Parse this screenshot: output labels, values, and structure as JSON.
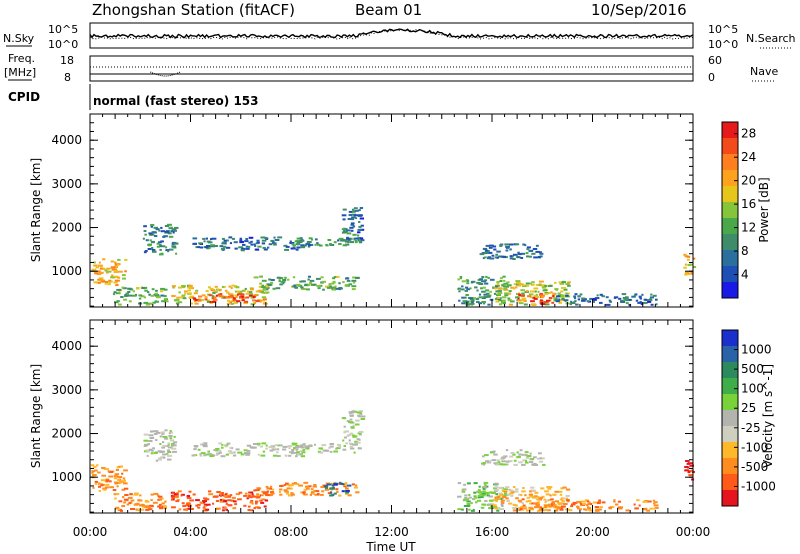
{
  "header": {
    "station": "Zhongshan Station (fitACF)",
    "beam": "Beam 01",
    "date": "10/Sep/2016"
  },
  "top_panels": {
    "nsky_label": "N.Sky",
    "nsearch_label": "N.Search",
    "nsky_ticks": [
      "10^5",
      "10^0"
    ],
    "nsearch_ticks": [
      "10^5",
      "10^0"
    ],
    "freq_label_1": "Freq.",
    "freq_label_2": "[MHz]",
    "freq_ticks": [
      "18",
      "8"
    ],
    "nave_label": "Nave",
    "nave_ticks": [
      "60",
      "0"
    ],
    "cpid_label": "CPID",
    "cpid_text": "normal (fast stereo) 153"
  },
  "colors": {
    "power_scale": [
      "#1a1ae6",
      "#1e4fb4",
      "#2a6f9e",
      "#3f8c6a",
      "#4aa84a",
      "#86c43a",
      "#e6c61a",
      "#ffa21e",
      "#ff7f1e",
      "#f24a1a",
      "#e61a1a"
    ],
    "velocity_scale": [
      "#e6141e",
      "#ff5a1a",
      "#ff8c1e",
      "#ffb82a",
      "#cfcfbf",
      "#b4b4ae",
      "#7ad23a",
      "#3fae4a",
      "#2c8a5c",
      "#2a62a8",
      "#1a2fcc"
    ],
    "ground_scatter": "#c8c8c0"
  },
  "chart_data": [
    {
      "type": "heatmap",
      "name": "power",
      "ylabel": "Slant Range [km]",
      "xlabel": "",
      "colorbar_label": "Power [dB]",
      "colorbar_ticks": [
        "4",
        "8",
        "12",
        "16",
        "20",
        "24",
        "28"
      ],
      "colorbar_range": [
        0,
        30
      ],
      "x_ticks": [
        "00:00",
        "04:00",
        "08:00",
        "12:00",
        "16:00",
        "20:00",
        "00:00"
      ],
      "y_ticks": [
        "1000",
        "2000",
        "3000",
        "4000"
      ],
      "xlim": [
        0,
        24
      ],
      "ylim": [
        180,
        4600
      ],
      "regions": [
        {
          "t0": 0.0,
          "t1": 1.4,
          "r0": 700,
          "r1": 1300,
          "v": 20
        },
        {
          "t0": 0.9,
          "t1": 3.0,
          "r0": 250,
          "r1": 650,
          "v": 12
        },
        {
          "t0": 2.1,
          "t1": 3.4,
          "r0": 1400,
          "r1": 2100,
          "v": 8
        },
        {
          "t0": 3.2,
          "t1": 7.0,
          "r0": 260,
          "r1": 700,
          "v": 18
        },
        {
          "t0": 3.8,
          "t1": 6.6,
          "r0": 300,
          "r1": 500,
          "v": 26
        },
        {
          "t0": 4.0,
          "t1": 8.5,
          "r0": 1500,
          "r1": 1800,
          "v": 6
        },
        {
          "t0": 6.5,
          "t1": 10.6,
          "r0": 600,
          "r1": 900,
          "v": 12
        },
        {
          "t0": 8.0,
          "t1": 10.6,
          "r0": 1580,
          "r1": 1800,
          "v": 8
        },
        {
          "t0": 10.0,
          "t1": 10.8,
          "r0": 1650,
          "r1": 2550,
          "v": 6
        },
        {
          "t0": 14.6,
          "t1": 16.5,
          "r0": 250,
          "r1": 900,
          "v": 10
        },
        {
          "t0": 15.5,
          "t1": 18.0,
          "r0": 1300,
          "r1": 1650,
          "v": 6
        },
        {
          "t0": 16.0,
          "t1": 19.0,
          "r0": 250,
          "r1": 800,
          "v": 16
        },
        {
          "t0": 17.0,
          "t1": 18.5,
          "r0": 260,
          "r1": 520,
          "v": 26
        },
        {
          "t0": 18.5,
          "t1": 22.5,
          "r0": 250,
          "r1": 500,
          "v": 6
        },
        {
          "t0": 23.6,
          "t1": 24.0,
          "r0": 900,
          "r1": 1400,
          "v": 20
        }
      ]
    },
    {
      "type": "heatmap",
      "name": "velocity",
      "ylabel": "Slant Range [km]",
      "xlabel": "Time UT",
      "colorbar_label": "Velocity [m s^-1]",
      "colorbar_ticks": [
        "-1000",
        "-500",
        "-100",
        "-25",
        "25",
        "100",
        "500",
        "1000"
      ],
      "x_ticks": [
        "00:00",
        "04:00",
        "08:00",
        "12:00",
        "16:00",
        "20:00",
        "00:00"
      ],
      "y_ticks": [
        "1000",
        "2000",
        "3000",
        "4000"
      ],
      "xlim": [
        0,
        24
      ],
      "ylim": [
        180,
        4600
      ],
      "regions": [
        {
          "t0": 0.0,
          "t1": 1.4,
          "r0": 700,
          "r1": 1300,
          "v": 2
        },
        {
          "t0": 0.9,
          "t1": 3.0,
          "r0": 250,
          "r1": 650,
          "v": 2
        },
        {
          "t0": 2.1,
          "t1": 3.4,
          "r0": 1400,
          "r1": 2100,
          "v": 5
        },
        {
          "t0": 3.2,
          "t1": 7.0,
          "r0": 260,
          "r1": 700,
          "v": 1
        },
        {
          "t0": 4.0,
          "t1": 8.5,
          "r0": 1500,
          "r1": 1800,
          "v": 5
        },
        {
          "t0": 6.5,
          "t1": 10.6,
          "r0": 600,
          "r1": 900,
          "v": 2
        },
        {
          "t0": 9.3,
          "t1": 10.3,
          "r0": 600,
          "r1": 900,
          "v": 9
        },
        {
          "t0": 8.0,
          "t1": 10.6,
          "r0": 1580,
          "r1": 1800,
          "v": 5
        },
        {
          "t0": 10.0,
          "t1": 10.8,
          "r0": 1650,
          "r1": 2550,
          "v": 5
        },
        {
          "t0": 14.6,
          "t1": 16.5,
          "r0": 250,
          "r1": 900,
          "v": 6
        },
        {
          "t0": 15.5,
          "t1": 18.0,
          "r0": 1300,
          "r1": 1650,
          "v": 5
        },
        {
          "t0": 16.0,
          "t1": 19.0,
          "r0": 250,
          "r1": 800,
          "v": 3
        },
        {
          "t0": 17.0,
          "t1": 18.5,
          "r0": 260,
          "r1": 520,
          "v": 2
        },
        {
          "t0": 18.5,
          "t1": 22.5,
          "r0": 250,
          "r1": 500,
          "v": 2
        },
        {
          "t0": 23.6,
          "t1": 24.0,
          "r0": 900,
          "r1": 1400,
          "v": 0
        }
      ]
    }
  ]
}
